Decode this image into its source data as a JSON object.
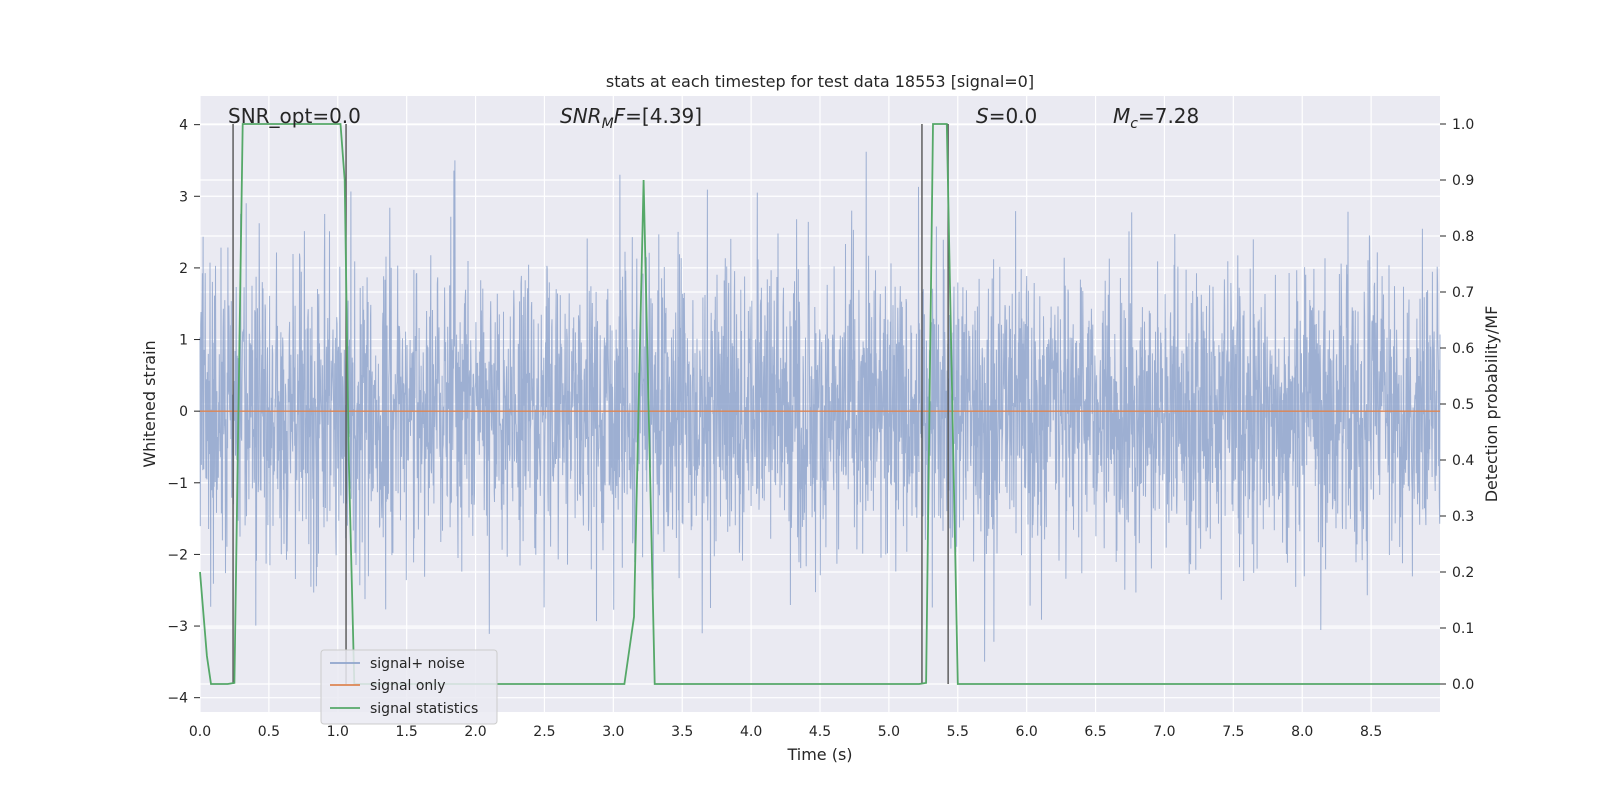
{
  "chart_data": {
    "type": "line",
    "title": "stats at each timestep for test data 18553 [signal=0]",
    "xlabel": "Time (s)",
    "ylabel": "Whitened strain",
    "y2label": "Detection probability/MF",
    "xlim": [
      0.0,
      9.0
    ],
    "ylim": [
      -4.2,
      4.4
    ],
    "y2lim": [
      -0.05,
      1.05
    ],
    "xticks": [
      "0.0",
      "0.5",
      "1.0",
      "1.5",
      "2.0",
      "2.5",
      "3.0",
      "3.5",
      "4.0",
      "4.5",
      "5.0",
      "5.5",
      "6.0",
      "6.5",
      "7.0",
      "7.5",
      "8.0",
      "8.5"
    ],
    "yticks": [
      "4",
      "3",
      "2",
      "1",
      "0",
      "−1",
      "−2",
      "−3",
      "−4"
    ],
    "y2ticks": [
      "1.0",
      "0.9",
      "0.8",
      "0.7",
      "0.6",
      "0.5",
      "0.4",
      "0.3",
      "0.2",
      "0.1",
      "0.0"
    ],
    "grid": true,
    "legend_position": "lower-left",
    "annotations": {
      "snr_opt": "SNR_opt=0.0",
      "snr_mf_main": "SNR",
      "snr_mf_sub": "M",
      "snr_mf_rest": "F=[4.39]",
      "s_main": "S",
      "s_rest": "=0.0",
      "mc_main": "M",
      "mc_sub": "c",
      "mc_rest": "=7.28"
    },
    "series": [
      {
        "name": "signal+ noise",
        "color": "#8fa4cc",
        "description": "whitened noise strain, roughly Gaussian with sigma ~1, sampled densely over 0–9 s"
      },
      {
        "name": "signal only",
        "color": "#dd8452",
        "values_constant": 0
      },
      {
        "name": "signal statistics",
        "color": "#55a868",
        "axis": "right",
        "x": [
          0.0,
          0.05,
          0.08,
          0.2,
          0.25,
          0.31,
          0.34,
          1.02,
          1.05,
          1.08,
          1.12,
          3.08,
          3.15,
          3.22,
          3.3,
          5.22,
          5.27,
          5.32,
          5.42,
          5.5,
          9.0
        ],
        "y": [
          0.2,
          0.05,
          0.0,
          0.0,
          0.002,
          1.0,
          1.0,
          1.0,
          0.9,
          0.4,
          0.0,
          0.0,
          0.12,
          0.9,
          0.0,
          0.0,
          0.002,
          1.0,
          1.0,
          0.0,
          0.0
        ]
      }
    ],
    "vlines_x": [
      0.24,
      1.06,
      5.24,
      5.43
    ]
  }
}
